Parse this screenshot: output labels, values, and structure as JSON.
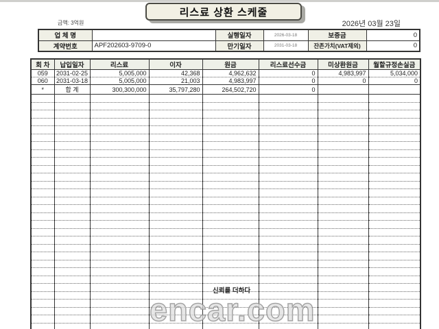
{
  "page": {
    "title": "리스료 상환 스케줄",
    "unit_note": "금액: 3억원",
    "print_date": "2026년 03월 23일"
  },
  "info_table": {
    "row1": {
      "label1": "업 체 명",
      "value1": "",
      "label2": "실행일자",
      "value2": "2026-03-18",
      "label3": "보증금",
      "value3": "0"
    },
    "row2": {
      "label1": "계약번호",
      "value1": "APF202603-9709-0",
      "label2": "만기일자",
      "value2": "2031-03-18",
      "label3": "잔존가치(VAT제외)",
      "value3": "0"
    }
  },
  "schedule_table": {
    "headers": [
      "회 차",
      "납입일자",
      "리스료",
      "이자",
      "원금",
      "리스료선수금",
      "미상환원금",
      "월할규정손실금"
    ],
    "rows": [
      [
        "059",
        "2031-02-25",
        "5,005,000",
        "42,368",
        "4,962,632",
        "0",
        "4,983,997",
        "5,034,000"
      ],
      [
        "060",
        "2031-03-18",
        "5,005,000",
        "21,003",
        "4,983,997",
        "0",
        "0",
        "0"
      ]
    ],
    "total_row": [
      "*",
      "합 계",
      "300,300,000",
      "35,797,280",
      "264,502,720",
      "0",
      "",
      ""
    ],
    "empty_row_count": 30
  },
  "watermark": {
    "slogan": "신뢰를 더하다",
    "brand": "encar.com"
  }
}
